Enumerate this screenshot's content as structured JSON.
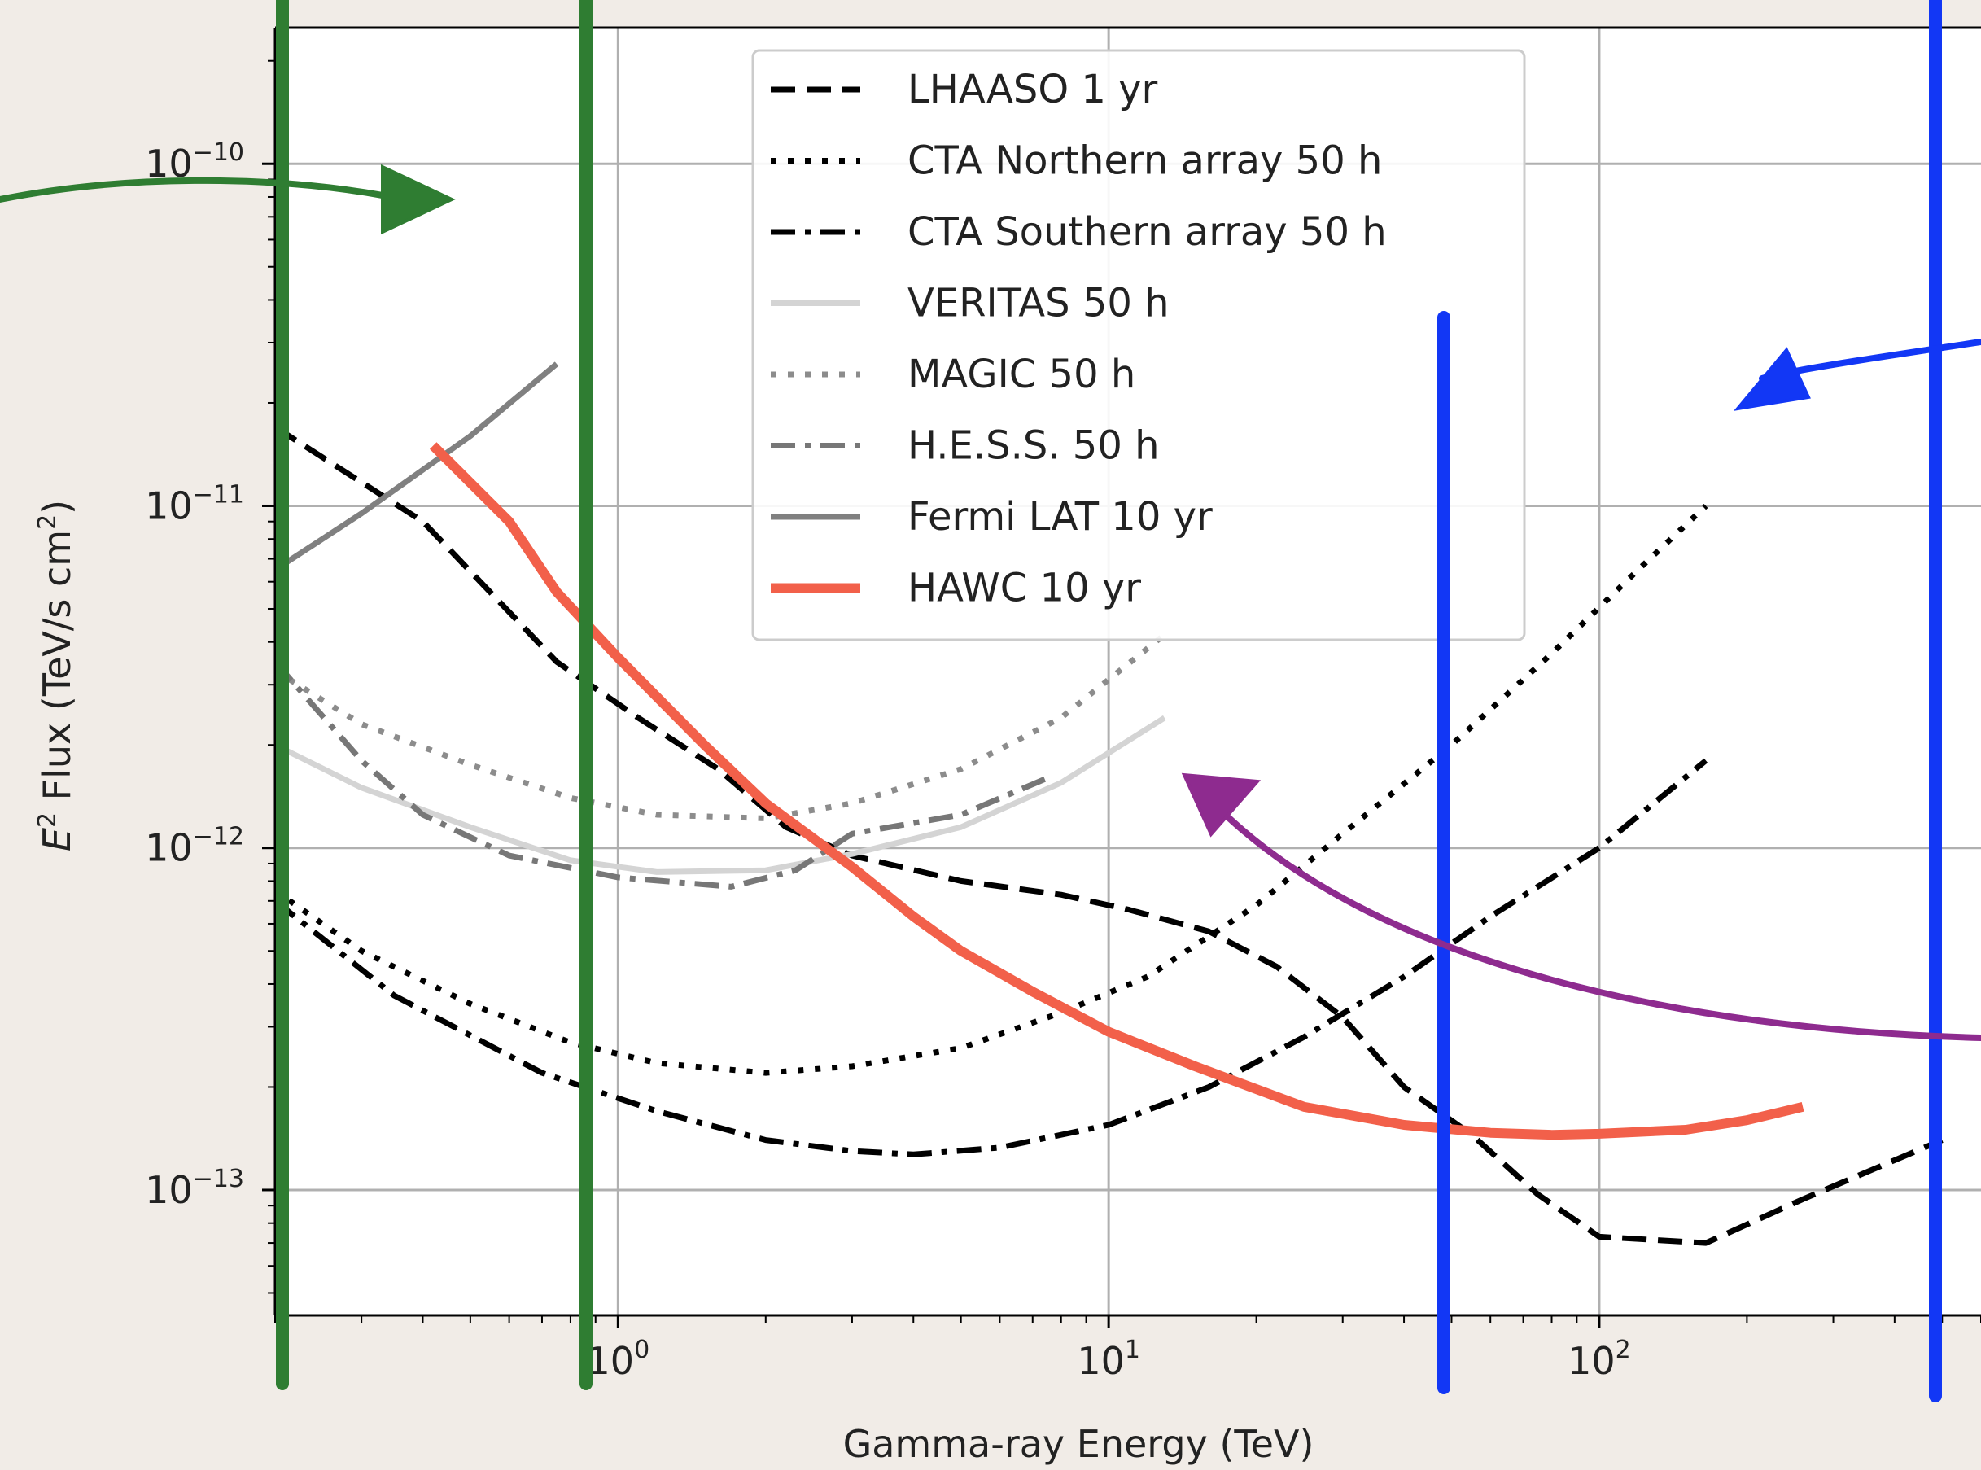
{
  "chart_data": {
    "type": "line",
    "title": "",
    "xlabel": "Gamma-ray Energy (TeV)",
    "ylabel_parts": [
      "E",
      "2",
      " Flux (TeV/s cm",
      "2",
      ")"
    ],
    "x_scale": "log",
    "y_scale": "log",
    "xlim": [
      0.2,
      600
    ],
    "ylim": [
      4.3e-14,
      2.5e-10
    ],
    "grid": true,
    "legend_position": "top-center",
    "x_ticks": [
      {
        "value": 1,
        "base": "10",
        "exp": "0"
      },
      {
        "value": 10,
        "base": "10",
        "exp": "1"
      },
      {
        "value": 100,
        "base": "10",
        "exp": "2"
      }
    ],
    "y_ticks": [
      {
        "value": 1e-10,
        "base": "10",
        "exp": "−10"
      },
      {
        "value": 1e-11,
        "base": "10",
        "exp": "−11"
      },
      {
        "value": 1e-12,
        "base": "10",
        "exp": "−12"
      },
      {
        "value": 1e-13,
        "base": "10",
        "exp": "−13"
      }
    ],
    "series": [
      {
        "name": "LHAASO 1 yr",
        "color": "#000000",
        "dash": "dashed",
        "width": 7,
        "x": [
          0.2,
          0.4,
          0.75,
          1.1,
          1.6,
          2.2,
          3,
          5,
          8,
          11,
          16,
          22,
          30,
          40,
          55,
          75,
          100,
          165,
          260,
          500
        ],
        "y": [
          1.7e-11,
          9e-12,
          3.5e-12,
          2.4e-12,
          1.7e-12,
          1.15e-12,
          9.5e-13,
          8e-13,
          7.3e-13,
          6.6e-13,
          5.7e-13,
          4.5e-13,
          3.2e-13,
          2e-13,
          1.45e-13,
          9.7e-14,
          7.3e-14,
          7e-14,
          9.4e-14,
          1.4e-13
        ]
      },
      {
        "name": "CTA Northern array 50 h",
        "color": "#000000",
        "dash": "dotted",
        "width": 7,
        "x": [
          0.2,
          0.3,
          0.5,
          0.8,
          1.2,
          2,
          3,
          5,
          8,
          12,
          20,
          30,
          50,
          80,
          120,
          165
        ],
        "y": [
          7.5e-13,
          5e-13,
          3.5e-13,
          2.7e-13,
          2.35e-13,
          2.2e-13,
          2.3e-13,
          2.6e-13,
          3.3e-13,
          4.2e-13,
          6.8e-13,
          1.1e-12,
          2e-12,
          3.7e-12,
          6.5e-12,
          1e-11
        ]
      },
      {
        "name": "CTA Southern array 50 h",
        "color": "#000000",
        "dash": "dashdot",
        "width": 7,
        "x": [
          0.2,
          0.35,
          0.7,
          1.2,
          2,
          3,
          4,
          6,
          10,
          16,
          25,
          40,
          60,
          100,
          165
        ],
        "y": [
          7e-13,
          3.7e-13,
          2.2e-13,
          1.7e-13,
          1.4e-13,
          1.3e-13,
          1.27e-13,
          1.33e-13,
          1.55e-13,
          2e-13,
          2.8e-13,
          4.2e-13,
          6.3e-13,
          1e-12,
          1.8e-12
        ]
      },
      {
        "name": "VERITAS 50 h",
        "color": "#d4d4d4",
        "dash": "solid",
        "width": 7,
        "x": [
          0.2,
          0.3,
          0.5,
          0.8,
          1.2,
          2,
          3,
          5,
          8,
          13
        ],
        "y": [
          2e-12,
          1.5e-12,
          1.15e-12,
          9.2e-13,
          8.5e-13,
          8.6e-13,
          9.6e-13,
          1.15e-12,
          1.55e-12,
          2.4e-12
        ]
      },
      {
        "name": "MAGIC 50 h",
        "color": "#8c8c8c",
        "dash": "dotted",
        "width": 7,
        "x": [
          0.2,
          0.3,
          0.5,
          0.8,
          1.2,
          2,
          3,
          5,
          8,
          13
        ],
        "y": [
          3.3e-12,
          2.3e-12,
          1.75e-12,
          1.4e-12,
          1.25e-12,
          1.22e-12,
          1.35e-12,
          1.7e-12,
          2.4e-12,
          4.2e-12
        ]
      },
      {
        "name": "H.E.S.S. 50 h",
        "color": "#777777",
        "dash": "dashdot",
        "width": 7,
        "x": [
          0.2,
          0.3,
          0.4,
          0.6,
          1,
          1.7,
          2.3,
          3,
          5,
          7.5
        ],
        "y": [
          3.5e-12,
          1.8e-12,
          1.25e-12,
          9.5e-13,
          8.2e-13,
          7.7e-13,
          8.6e-13,
          1.1e-12,
          1.25e-12,
          1.6e-12
        ]
      },
      {
        "name": "Fermi LAT 10 yr",
        "color": "#808080",
        "dash": "solid",
        "width": 7,
        "x": [
          0.2,
          0.3,
          0.5,
          0.75
        ],
        "y": [
          6.5e-12,
          9.5e-12,
          1.6e-11,
          2.6e-11
        ]
      },
      {
        "name": "HAWC 10 yr",
        "color": "#f2604a",
        "dash": "solid",
        "width": 12,
        "x": [
          0.42,
          0.6,
          0.75,
          1,
          1.5,
          2,
          3,
          4,
          5,
          7,
          10,
          15,
          25,
          40,
          60,
          80,
          100,
          150,
          200,
          260
        ],
        "y": [
          1.5e-11,
          9e-12,
          5.6e-12,
          3.6e-12,
          2e-12,
          1.35e-12,
          8.8e-13,
          6.3e-13,
          5e-13,
          3.8e-13,
          2.9e-13,
          2.3e-13,
          1.75e-13,
          1.55e-13,
          1.47e-13,
          1.45e-13,
          1.46e-13,
          1.5e-13,
          1.6e-13,
          1.75e-13
        ]
      }
    ],
    "annotation_colors": {
      "green": "#2f7d32",
      "blue": "#1237f5",
      "purple": "#8e2b8f"
    }
  }
}
